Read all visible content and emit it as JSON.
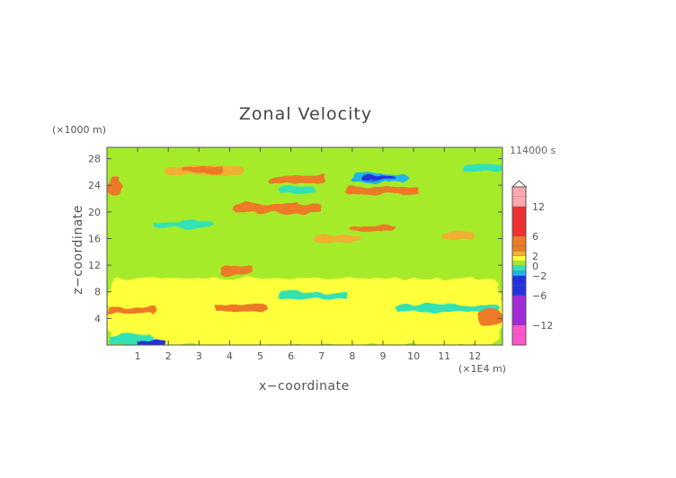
{
  "chart_data": {
    "type": "heatmap",
    "title": "Zonal Velocity",
    "xlabel": "x−coordinate",
    "ylabel": "z−coordinate",
    "x_unit_label": "(×1E4 m)",
    "z_unit_label": "(×1000 m)",
    "time_label": "114000 s",
    "xlim": [
      0,
      12.9
    ],
    "ylim": [
      0,
      29.7
    ],
    "x_ticks": [
      "1",
      "2",
      "3",
      "4",
      "5",
      "6",
      "7",
      "8",
      "9",
      "10",
      "11",
      "12"
    ],
    "y_ticks": [
      "4",
      "8",
      "12",
      "16",
      "20",
      "24",
      "28"
    ],
    "colorbar_ticks": [
      "12",
      "6",
      "2",
      "0",
      "−2",
      "−6",
      "−12"
    ],
    "background_value": 0.5,
    "colors": {
      "below_-12": "#ff55cc",
      "-12_to_-6": "#a22ad8",
      "-6_to_-2": "#2233dd",
      "-2_to_-1": "#22b4e8",
      "-1_to_0": "#33e2b4",
      "0_to_1": "#a5eb2a",
      "1_to_2": "#ffff3a",
      "2_to_3": "#f0b030",
      "3_to_6": "#ec7a28",
      "6_to_12": "#f03030",
      "above_12": "#ffa8b2"
    },
    "features": [
      {
        "x": [
          0.0,
          12.9
        ],
        "z": [
          10.0,
          28.5
        ],
        "value": 0.5
      },
      {
        "x": [
          0.0,
          12.9
        ],
        "z": [
          0.0,
          10.0
        ],
        "value": 1.5
      },
      {
        "x": [
          1.9,
          4.5
        ],
        "z": [
          25.6,
          26.8
        ],
        "value": 2.5
      },
      {
        "x": [
          2.4,
          3.8
        ],
        "z": [
          25.9,
          26.6
        ],
        "value": 3.5
      },
      {
        "x": [
          5.3,
          7.1
        ],
        "z": [
          24.3,
          25.3
        ],
        "value": 3.0
      },
      {
        "x": [
          7.8,
          10.2
        ],
        "z": [
          22.6,
          23.8
        ],
        "value": 3.5
      },
      {
        "x": [
          8.0,
          9.8
        ],
        "z": [
          24.5,
          25.8
        ],
        "value": -1.5
      },
      {
        "x": [
          8.3,
          9.4
        ],
        "z": [
          24.8,
          25.4
        ],
        "value": -3.0
      },
      {
        "x": [
          5.6,
          6.8
        ],
        "z": [
          22.8,
          23.8
        ],
        "value": -0.5
      },
      {
        "x": [
          4.1,
          7.0
        ],
        "z": [
          19.9,
          21.2
        ],
        "value": 3.0
      },
      {
        "x": [
          1.5,
          3.4
        ],
        "z": [
          17.6,
          18.6
        ],
        "value": -0.8
      },
      {
        "x": [
          7.9,
          9.4
        ],
        "z": [
          17.1,
          17.9
        ],
        "value": 3.0
      },
      {
        "x": [
          6.7,
          8.3
        ],
        "z": [
          15.4,
          16.4
        ],
        "value": 2.5
      },
      {
        "x": [
          10.9,
          12.0
        ],
        "z": [
          16.0,
          17.0
        ],
        "value": 2.5
      },
      {
        "x": [
          3.7,
          4.7
        ],
        "z": [
          10.6,
          11.8
        ],
        "value": 3.0
      },
      {
        "x": [
          5.6,
          7.9
        ],
        "z": [
          7.0,
          7.9
        ],
        "value": -0.6
      },
      {
        "x": [
          3.5,
          5.2
        ],
        "z": [
          5.1,
          6.1
        ],
        "value": 3.0
      },
      {
        "x": [
          0.0,
          1.6
        ],
        "z": [
          4.6,
          5.8
        ],
        "value": 3.0
      },
      {
        "x": [
          0.0,
          1.5
        ],
        "z": [
          0.0,
          1.6
        ],
        "value": -1.0
      },
      {
        "x": [
          1.0,
          2.0
        ],
        "z": [
          0.0,
          0.6
        ],
        "value": -3.0
      },
      {
        "x": [
          9.4,
          12.8
        ],
        "z": [
          5.0,
          6.2
        ],
        "value": -0.7
      },
      {
        "x": [
          12.1,
          12.9
        ],
        "z": [
          2.9,
          5.4
        ],
        "value": 3.5
      },
      {
        "x": [
          0.0,
          0.5
        ],
        "z": [
          22.4,
          25.1
        ],
        "value": 3.0
      },
      {
        "x": [
          11.6,
          12.9
        ],
        "z": [
          26.1,
          27.0
        ],
        "value": -0.6
      }
    ]
  }
}
